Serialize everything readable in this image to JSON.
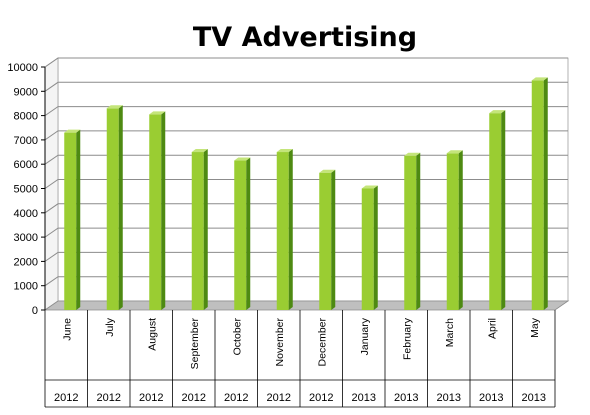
{
  "chart_data": {
    "type": "bar",
    "title": "TV Advertising",
    "xlabel": "",
    "ylabel": "",
    "ylim": [
      0,
      10000
    ],
    "yticks": [
      "0",
      "1000",
      "2000",
      "3000",
      "4000",
      "5000",
      "6000",
      "7000",
      "8000",
      "9000",
      "10000"
    ],
    "categories": [
      "June",
      "July",
      "August",
      "September",
      "October",
      "November",
      "December",
      "January",
      "February",
      "March",
      "April",
      "May"
    ],
    "years": [
      "2012",
      "2012",
      "2012",
      "2012",
      "2012",
      "2012",
      "2012",
      "2013",
      "2013",
      "2013",
      "2013",
      "2013"
    ],
    "values": [
      7300,
      8300,
      8050,
      6500,
      6150,
      6500,
      5650,
      5000,
      6350,
      6450,
      8100,
      9450
    ],
    "grid": true,
    "legend": "none",
    "colors": {
      "bar_front": "#9ACD32",
      "bar_side": "#4E8A12",
      "bar_top": "#C4E57A",
      "wall": "#FFFFFF",
      "grid": "#8C8C8C",
      "floor": "#BFBFBF"
    }
  }
}
